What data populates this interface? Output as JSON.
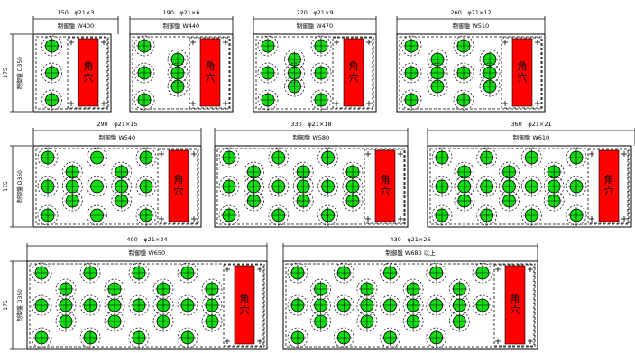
{
  "hole_label": "角穴",
  "side_height_label": "175",
  "side_depth_label": "制御盤 D350",
  "colors": {
    "hole_fill": "#11dd11",
    "hole_outline": "#000000",
    "square_hole_fill": "#ff0000",
    "panel_line": "#000000"
  },
  "panels": [
    {
      "top_label": "150　φ21×3",
      "width_label": "制御盤 W400",
      "holes": 3
    },
    {
      "top_label": "190　φ21×6",
      "width_label": "制御盤 W440",
      "holes": 6
    },
    {
      "top_label": "220　φ21×9",
      "width_label": "制御盤 W470",
      "holes": 9
    },
    {
      "top_label": "260　φ21×12",
      "width_label": "制御盤 W510",
      "holes": 12
    },
    {
      "top_label": "290　φ21×15",
      "width_label": "制御盤 W540",
      "holes": 15
    },
    {
      "top_label": "330　φ21×18",
      "width_label": "制御盤 W580",
      "holes": 18
    },
    {
      "top_label": "360　φ21×21",
      "width_label": "制御盤 W610",
      "holes": 21
    },
    {
      "top_label": "400　φ21×24",
      "width_label": "制御盤 W650",
      "holes": 24
    },
    {
      "top_label": "430　φ21×26",
      "width_label": "制御盤 W680 以上",
      "holes": 26
    }
  ]
}
